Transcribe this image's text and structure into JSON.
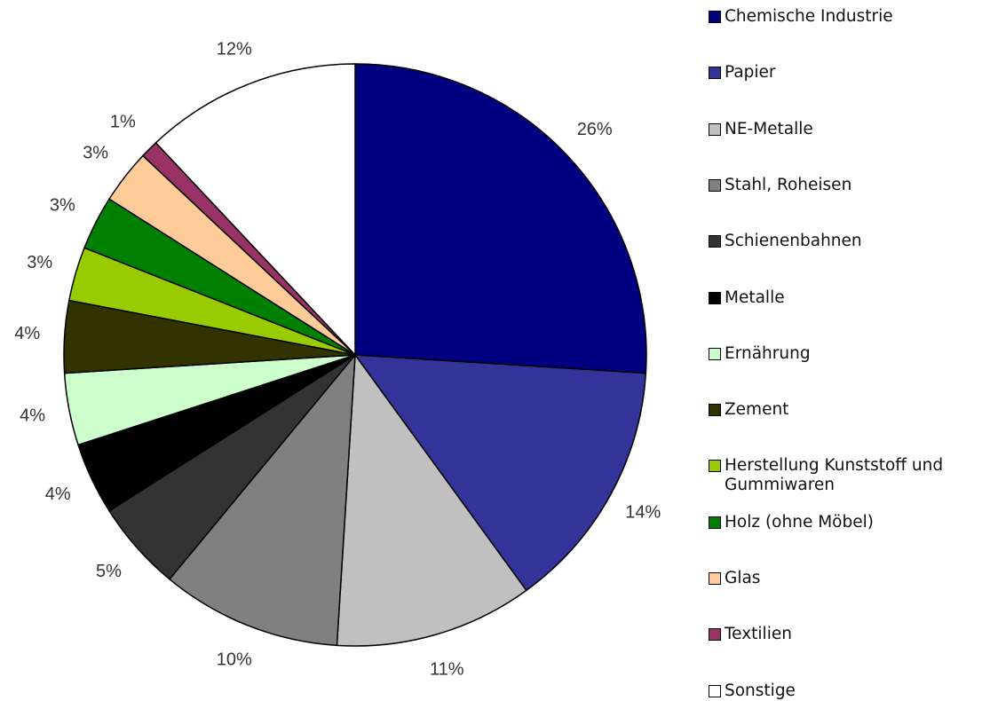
{
  "chart_data": {
    "type": "pie",
    "categories": [
      "Chemische Industrie",
      "Papier",
      "NE-Metalle",
      "Stahl, Roheisen",
      "Schienenbahnen",
      "Metalle",
      "Ernährung",
      "Zement",
      "Herstellung Kunststoff und Gummiwaren",
      "Holz (ohne Möbel)",
      "Glas",
      "Textilien",
      "Sonstige"
    ],
    "values": [
      26,
      14,
      11,
      10,
      5,
      4,
      4,
      4,
      3,
      3,
      3,
      1,
      12
    ],
    "value_labels": [
      "26%",
      "14%",
      "11%",
      "10%",
      "5%",
      "4%",
      "4%",
      "4%",
      "3%",
      "3%",
      "3%",
      "1%",
      "12%"
    ],
    "colors": [
      "#000080",
      "#333399",
      "#c0c0c0",
      "#808080",
      "#333333",
      "#000000",
      "#ccffcc",
      "#333300",
      "#99cc00",
      "#008000",
      "#ffcc99",
      "#993366",
      "#ffffff"
    ],
    "legend": "right"
  }
}
